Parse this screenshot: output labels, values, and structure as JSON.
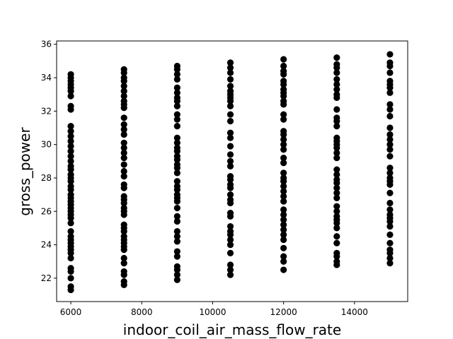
{
  "chart_data": {
    "type": "scatter",
    "title": "",
    "xlabel": "indoor_coil_air_mass_flow_rate",
    "ylabel": "gross_power",
    "xlim": [
      5600,
      15500
    ],
    "ylim": [
      20.6,
      36.2
    ],
    "xticks": [
      6000,
      8000,
      10000,
      12000,
      14000
    ],
    "yticks": [
      22,
      24,
      26,
      28,
      30,
      32,
      34,
      36
    ],
    "grid": false,
    "marker_color": "#000000",
    "series": [
      {
        "x_values": [
          6000,
          7500,
          9000,
          10500,
          12000,
          13500,
          15000
        ],
        "y_values": [
          [
            21.3,
            21.5,
            22.0,
            22.4,
            22.6,
            23.2,
            23.5,
            23.7,
            23.9,
            24.1,
            24.3,
            24.5,
            24.8,
            25.3,
            25.6,
            25.8,
            26.0,
            26.2,
            26.4,
            26.6,
            26.8,
            27.0,
            27.3,
            27.5,
            27.8,
            28.0,
            28.2,
            28.5,
            28.7,
            29.0,
            29.3,
            29.6,
            29.9,
            30.2,
            30.5,
            30.8,
            31.1,
            32.1,
            32.3,
            32.9,
            33.2,
            33.4,
            33.6,
            33.8,
            34.0,
            34.2
          ],
          [
            21.6,
            21.8,
            22.2,
            22.4,
            22.9,
            23.2,
            23.7,
            23.9,
            24.1,
            24.3,
            24.5,
            24.8,
            25.0,
            25.2,
            25.8,
            26.0,
            26.2,
            26.5,
            26.7,
            26.9,
            27.4,
            27.6,
            28.1,
            28.4,
            28.8,
            29.2,
            29.5,
            29.8,
            30.1,
            30.6,
            30.9,
            31.2,
            31.6,
            32.2,
            32.4,
            32.6,
            32.9,
            33.2,
            33.5,
            33.8,
            34.0,
            34.3,
            34.5
          ],
          [
            21.9,
            22.2,
            22.5,
            22.7,
            23.3,
            23.6,
            24.2,
            24.5,
            24.8,
            25.4,
            25.7,
            26.2,
            26.6,
            26.8,
            27.0,
            27.3,
            27.5,
            27.8,
            28.3,
            28.6,
            28.8,
            29.1,
            29.3,
            29.6,
            29.8,
            30.1,
            30.4,
            31.1,
            31.5,
            31.8,
            32.3,
            32.6,
            32.8,
            33.1,
            33.4,
            33.9,
            34.2,
            34.5,
            34.7
          ],
          [
            22.2,
            22.5,
            22.8,
            23.5,
            24.0,
            24.3,
            24.6,
            24.8,
            25.1,
            25.7,
            25.9,
            26.5,
            26.7,
            27.0,
            27.4,
            27.6,
            27.9,
            28.1,
            28.7,
            29.0,
            29.4,
            29.9,
            30.4,
            30.7,
            31.4,
            31.8,
            32.3,
            32.6,
            32.8,
            33.0,
            33.2,
            33.5,
            33.9,
            34.3,
            34.6,
            34.9
          ],
          [
            22.5,
            23.0,
            23.3,
            23.8,
            24.3,
            24.6,
            24.9,
            25.2,
            25.5,
            25.8,
            26.1,
            26.6,
            26.9,
            27.2,
            27.5,
            27.8,
            28.0,
            28.3,
            28.9,
            29.2,
            29.7,
            30.0,
            30.3,
            30.6,
            30.8,
            31.5,
            31.8,
            32.4,
            32.6,
            32.9,
            33.1,
            33.3,
            33.6,
            33.8,
            34.2,
            34.4,
            34.7,
            35.1
          ],
          [
            22.8,
            23.0,
            23.3,
            23.5,
            24.1,
            24.5,
            25.0,
            25.3,
            25.5,
            25.7,
            26.0,
            26.3,
            26.8,
            27.1,
            27.4,
            27.7,
            27.9,
            28.2,
            28.5,
            29.2,
            29.5,
            29.8,
            30.0,
            30.2,
            30.4,
            31.1,
            31.4,
            31.6,
            32.1,
            32.8,
            33.0,
            33.3,
            33.6,
            33.9,
            34.3,
            34.6,
            34.8,
            35.2
          ],
          [
            22.9,
            23.2,
            23.5,
            23.7,
            24.1,
            24.6,
            25.1,
            25.4,
            25.6,
            25.8,
            26.1,
            26.5,
            27.1,
            27.6,
            27.8,
            28.0,
            28.3,
            28.6,
            29.3,
            29.7,
            30.0,
            30.3,
            30.6,
            31.0,
            31.7,
            32.1,
            32.4,
            33.1,
            33.4,
            33.6,
            33.8,
            34.3,
            34.7,
            34.9,
            35.4
          ]
        ]
      }
    ]
  }
}
